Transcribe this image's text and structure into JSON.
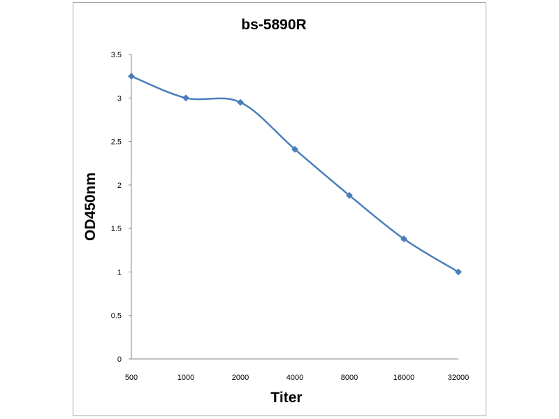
{
  "chart_data": {
    "type": "line",
    "title": "bs-5890R",
    "xlabel": "Titer",
    "ylabel": "OD450nm",
    "categories": [
      "500",
      "1000",
      "2000",
      "4000",
      "8000",
      "16000",
      "32000"
    ],
    "series": [
      {
        "values": [
          3.25,
          3.0,
          2.95,
          2.41,
          1.88,
          1.38,
          1.0
        ]
      }
    ],
    "ylim": [
      0,
      3.5
    ],
    "yticks": [
      "0",
      "0.5",
      "1",
      "1.5",
      "2",
      "2.5",
      "3",
      "3.5"
    ],
    "grid": false,
    "legend": "none",
    "line_color": "#4a7ebb",
    "smooth": true
  }
}
